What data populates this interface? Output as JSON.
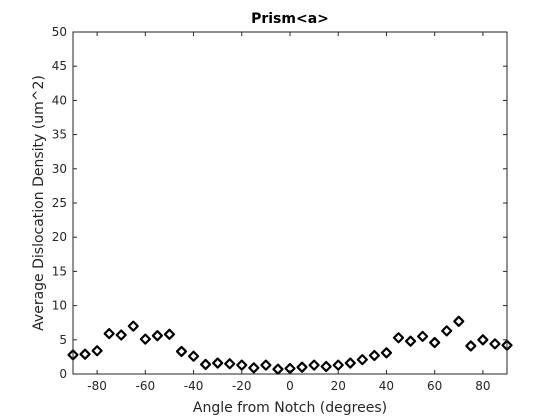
{
  "chart_data": {
    "type": "scatter",
    "title": "Prism<a>",
    "xlabel": "Angle from Notch (degrees)",
    "ylabel": "Average Dislocation Density (um^2)",
    "xlim": [
      -90,
      90
    ],
    "ylim": [
      0,
      50
    ],
    "xticks": [
      -80,
      -60,
      -40,
      -20,
      0,
      20,
      40,
      60,
      80
    ],
    "yticks": [
      0,
      5,
      10,
      15,
      20,
      25,
      30,
      35,
      40,
      45,
      50
    ],
    "grid": false,
    "marker": "diamond",
    "marker_color": "#000000",
    "x": [
      -90,
      -85,
      -80,
      -75,
      -70,
      -65,
      -60,
      -55,
      -50,
      -45,
      -40,
      -35,
      -30,
      -25,
      -20,
      -15,
      -10,
      -5,
      0,
      5,
      10,
      15,
      20,
      25,
      30,
      35,
      40,
      45,
      50,
      55,
      60,
      65,
      70,
      75,
      80,
      85,
      90
    ],
    "y": [
      2.8,
      2.9,
      3.4,
      5.9,
      5.7,
      7.0,
      5.1,
      5.6,
      5.8,
      3.3,
      2.6,
      1.4,
      1.6,
      1.5,
      1.3,
      0.9,
      1.3,
      0.7,
      0.8,
      1.0,
      1.3,
      1.1,
      1.3,
      1.6,
      2.1,
      2.7,
      3.1,
      5.3,
      4.8,
      5.5,
      4.6,
      6.3,
      7.7,
      4.1,
      5.0,
      4.4,
      4.2
    ]
  }
}
